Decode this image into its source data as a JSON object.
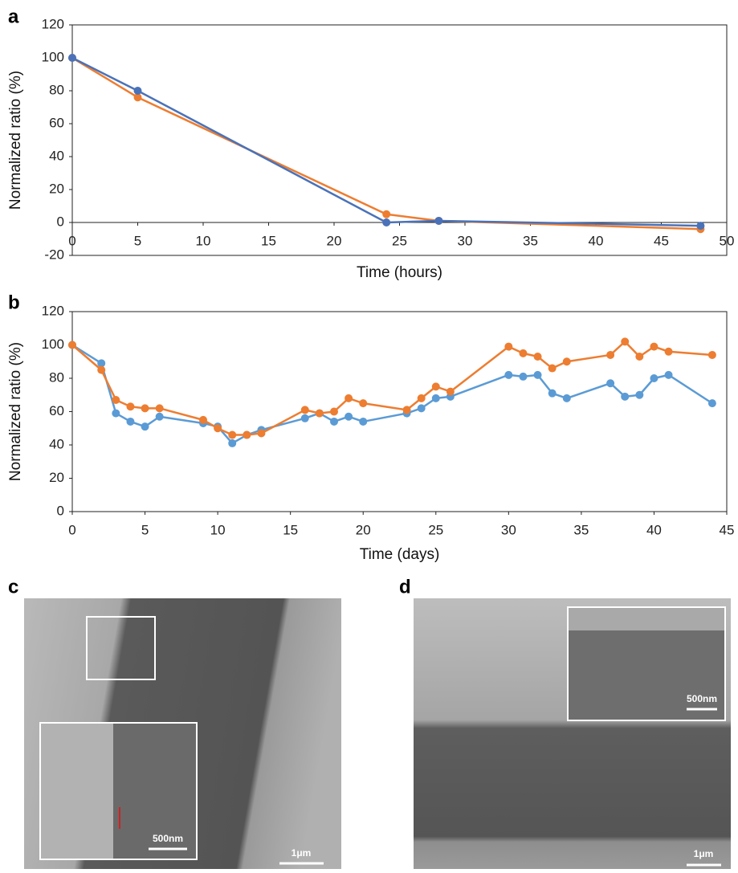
{
  "chart_data": [
    {
      "type": "line",
      "panel_label": "a",
      "x_label": "Time (hours)",
      "y_label": "Normalized ratio (%)",
      "xlim": [
        0,
        50
      ],
      "xticks": [
        0,
        5,
        10,
        15,
        20,
        25,
        30,
        35,
        40,
        45,
        50
      ],
      "ylim": [
        -20,
        120
      ],
      "yticks": [
        -20,
        0,
        20,
        40,
        60,
        80,
        100,
        120
      ],
      "x": [
        0,
        5,
        24,
        28,
        48
      ],
      "series": [
        {
          "color": "#ed7d31",
          "values": [
            100,
            76,
            5,
            1,
            -4
          ]
        },
        {
          "color": "#4a72b8",
          "values": [
            100,
            80,
            0,
            1,
            -2
          ]
        }
      ]
    },
    {
      "type": "line",
      "panel_label": "b",
      "x_label": "Time (days)",
      "y_label": "Normalized ratio (%)",
      "xlim": [
        0,
        45
      ],
      "xticks": [
        0,
        5,
        10,
        15,
        20,
        25,
        30,
        35,
        40,
        45
      ],
      "ylim": [
        0,
        120
      ],
      "yticks": [
        0,
        20,
        40,
        60,
        80,
        100,
        120
      ],
      "x": [
        0,
        2,
        3,
        4,
        5,
        6,
        9,
        10,
        11,
        12,
        13,
        16,
        17,
        18,
        19,
        20,
        23,
        24,
        25,
        26,
        30,
        31,
        32,
        33,
        34,
        37,
        38,
        39,
        40,
        41,
        44
      ],
      "series": [
        {
          "color": "#5b9bd5",
          "values": [
            100,
            89,
            59,
            54,
            51,
            57,
            53,
            51,
            41,
            46,
            49,
            56,
            59,
            54,
            57,
            54,
            59,
            62,
            68,
            69,
            82,
            81,
            82,
            71,
            68,
            77,
            69,
            70,
            80,
            82,
            65
          ]
        },
        {
          "color": "#ed7d31",
          "values": [
            100,
            85,
            67,
            63,
            62,
            62,
            55,
            50,
            46,
            46,
            47,
            61,
            59,
            60,
            68,
            65,
            61,
            68,
            75,
            72,
            99,
            95,
            93,
            86,
            90,
            94,
            102,
            93,
            99,
            96,
            94
          ]
        }
      ]
    }
  ],
  "images": [
    {
      "panel_label": "c",
      "scale_bar": "1μm",
      "inset_scale_bar": "500nm"
    },
    {
      "panel_label": "d",
      "scale_bar": "1μm",
      "inset_scale_bar": "500nm"
    }
  ]
}
